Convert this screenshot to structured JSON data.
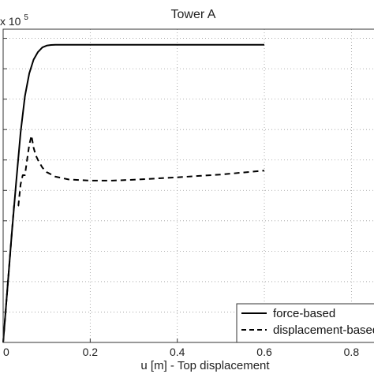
{
  "chart_data": {
    "type": "line",
    "title": "Tower A",
    "xlabel": "u [m] - Top displacement",
    "ylabel": "",
    "exponent_label": "x 10",
    "exponent_power": "5",
    "xlim": [
      0,
      0.87
    ],
    "ylim": [
      0,
      10.3
    ],
    "grid": true,
    "grid_style": "dotted",
    "x_ticks": [
      0,
      0.2,
      0.4,
      0.6,
      0.8
    ],
    "x_tick_labels": [
      "0",
      "0.2",
      "0.4",
      "0.6",
      "0.8"
    ],
    "y_ticks": [
      0,
      1,
      2,
      3,
      4,
      5,
      6,
      7,
      8,
      9,
      10
    ],
    "legend_position": "bottom-right",
    "series": [
      {
        "name": "force-based",
        "style": "solid",
        "color": "#000000",
        "x": [
          0,
          0.01,
          0.02,
          0.03,
          0.04,
          0.05,
          0.06,
          0.07,
          0.08,
          0.09,
          0.1,
          0.11,
          0.12,
          0.14,
          0.2,
          0.3,
          0.4,
          0.5,
          0.6
        ],
        "y": [
          0,
          1.8,
          3.6,
          5.3,
          6.9,
          8.1,
          8.85,
          9.3,
          9.55,
          9.7,
          9.76,
          9.78,
          9.79,
          9.79,
          9.79,
          9.79,
          9.79,
          9.79,
          9.79
        ]
      },
      {
        "name": "displacement-based",
        "style": "dashed",
        "color": "#000000",
        "x": [
          0,
          0.01,
          0.02,
          0.025,
          0.03,
          0.035,
          0.04,
          0.045,
          0.05,
          0.055,
          0.06,
          0.065,
          0.07,
          0.075,
          0.08,
          0.09,
          0.1,
          0.12,
          0.15,
          0.2,
          0.25,
          0.3,
          0.4,
          0.5,
          0.6
        ],
        "y": [
          0,
          1.8,
          3.6,
          4.5,
          4.45,
          4.5,
          5.2,
          5.5,
          5.5,
          6.0,
          6.5,
          6.8,
          6.4,
          6.15,
          6.0,
          5.75,
          5.6,
          5.45,
          5.36,
          5.32,
          5.32,
          5.35,
          5.43,
          5.52,
          5.65
        ]
      }
    ]
  }
}
